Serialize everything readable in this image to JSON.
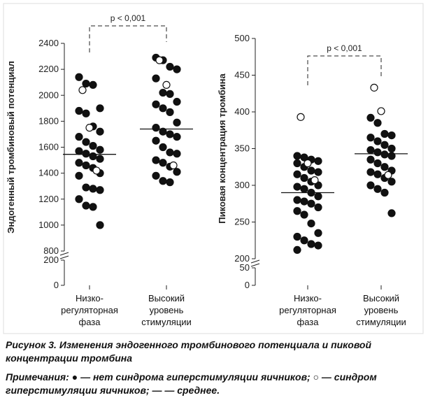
{
  "chart_data": [
    {
      "type": "strip",
      "y_label": "Эндогенный тромбиновый потенциал",
      "categories": [
        "Низко-\nрегуляторная\nфаза",
        "Высокий\nуровень\nстимуляции"
      ],
      "series": [
        {
          "marker": "filled",
          "color": "#111111",
          "values": [
            [
              2140,
              2090,
              2080,
              1900,
              1880,
              1860,
              1760,
              1720,
              1680,
              1640,
              1610,
              1580,
              1570,
              1550,
              1530,
              1510,
              1480,
              1460,
              1440,
              1400,
              1380,
              1290,
              1280,
              1270,
              1200,
              1150,
              1140,
              1000
            ],
            [
              2290,
              2270,
              2220,
              2200,
              2130,
              2020,
              2010,
              1950,
              1930,
              1900,
              1870,
              1790,
              1750,
              1720,
              1700,
              1680,
              1650,
              1600,
              1560,
              1550,
              1500,
              1480,
              1450,
              1410,
              1380,
              1340,
              1330
            ]
          ]
        },
        {
          "marker": "open",
          "color": "#111111",
          "values": [
            [
              2040,
              1750,
              1420
            ],
            [
              2270,
              2080,
              1460
            ]
          ]
        }
      ],
      "means": [
        1545,
        1740
      ],
      "annotation": "p < 0,001",
      "ylim": [
        800,
        2400
      ],
      "yticks": [
        800,
        1000,
        1200,
        1400,
        1600,
        1800,
        2000,
        2200,
        2400
      ],
      "ylim_lower": [
        0,
        200
      ],
      "yticks_lower": [
        0,
        200
      ]
    },
    {
      "type": "strip",
      "y_label": "Пиковая концентрация тромбина",
      "categories": [
        "Низко-\nрегуляторная\nфаза",
        "Высокий\nуровень\nстимуляции"
      ],
      "series": [
        {
          "marker": "filled",
          "color": "#111111",
          "values": [
            [
              340,
              338,
              335,
              333,
              330,
              325,
              320,
              318,
              315,
              310,
              305,
              300,
              298,
              295,
              290,
              285,
              280,
              278,
              275,
              270,
              265,
              260,
              248,
              235,
              230,
              225,
              220,
              218,
              212
            ],
            [
              392,
              385,
              370,
              368,
              365,
              360,
              355,
              350,
              348,
              345,
              342,
              340,
              335,
              330,
              325,
              320,
              318,
              315,
              310,
              305,
              300,
              295,
              290,
              262
            ]
          ]
        },
        {
          "marker": "open",
          "color": "#111111",
          "values": [
            [
              393,
              330,
              307
            ],
            [
              433,
              401,
              314
            ]
          ]
        }
      ],
      "means": [
        290,
        343
      ],
      "annotation": "p < 0,001",
      "ylim": [
        200,
        500
      ],
      "yticks": [
        200,
        250,
        300,
        350,
        400,
        450,
        500
      ],
      "ylim_lower": [
        0,
        50
      ],
      "yticks_lower": [
        0,
        50
      ]
    }
  ],
  "caption": "Рисунок 3. Изменения эндогенного тромбинового потенциала и пиковой концентрации тромбина",
  "notes": "Примечания: ● — нет синдрома гиперстимуляции яичников; ○ — синдром гиперстимуляции яичников; — — среднее."
}
